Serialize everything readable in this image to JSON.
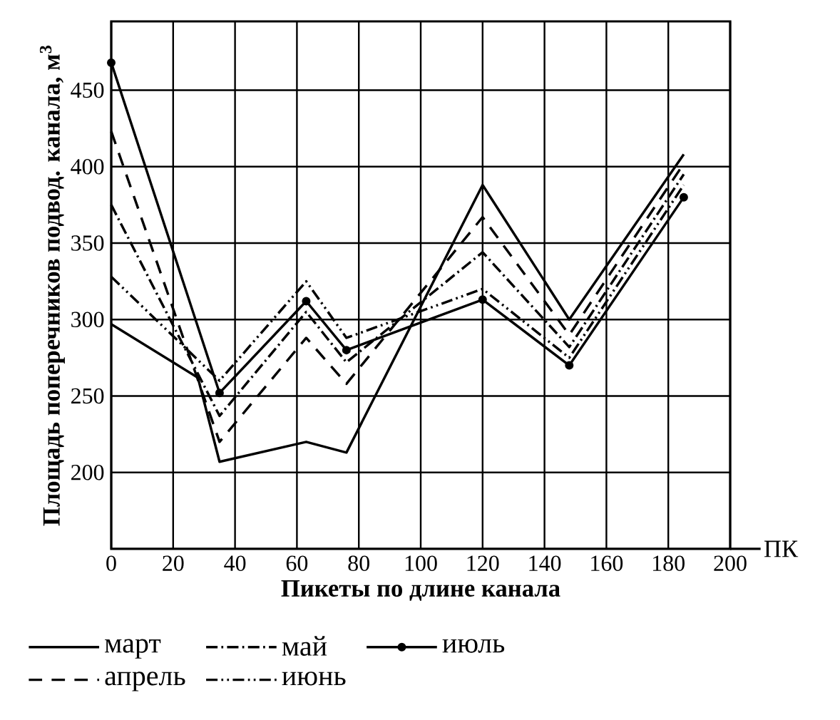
{
  "chart_data": {
    "type": "line",
    "xlabel": "Пикеты по длине канала",
    "ylabel": "Площадь поперечников подвод. канала, м$^{3}$",
    "annotations": [
      "ПК"
    ],
    "x": [
      0,
      35,
      63,
      76,
      120,
      148,
      185
    ],
    "xlim": [
      0,
      200
    ],
    "xticks": [
      0,
      20,
      40,
      60,
      80,
      100,
      120,
      140,
      160,
      180,
      200
    ],
    "ylim": [
      150,
      495
    ],
    "yticks": [
      200,
      250,
      300,
      350,
      400,
      450
    ],
    "grid": true,
    "legend": "bottom",
    "series": [
      {
        "name": "март",
        "color": "#000000",
        "line_style": "solid",
        "x": [
          0,
          28,
          35,
          63,
          76,
          120,
          148,
          185
        ],
        "values": [
          297,
          262,
          207,
          220,
          213,
          388,
          300,
          408
        ]
      },
      {
        "name": "апрель",
        "color": "#000000",
        "line_style": "dashed",
        "values": [
          423,
          220,
          288,
          258,
          367,
          290,
          402
        ]
      },
      {
        "name": "май",
        "color": "#000000",
        "line_style": "dashdot",
        "values": [
          375,
          237,
          305,
          272,
          344,
          282,
          395
        ]
      },
      {
        "name": "июнь",
        "color": "#000000",
        "line_style": "dashdotdot",
        "values": [
          328,
          260,
          325,
          288,
          320,
          275,
          388
        ]
      },
      {
        "name": "июль",
        "color": "#000000",
        "line_style": "solid",
        "marker": "circle",
        "values": [
          468,
          252,
          312,
          280,
          313,
          270,
          380
        ]
      }
    ]
  }
}
